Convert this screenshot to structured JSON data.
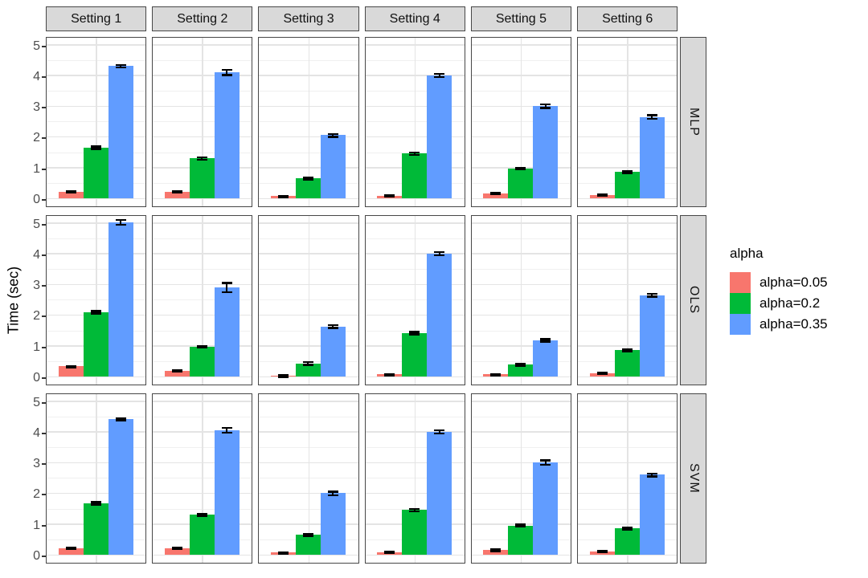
{
  "chart_data": {
    "type": "bar",
    "title": "",
    "xlabel": "",
    "ylabel": "Time (sec)",
    "ylim": [
      0,
      5.3
    ],
    "yticks": [
      0,
      1,
      2,
      3,
      4,
      5
    ],
    "grid": "on",
    "legend_position": "right",
    "legend_title": "alpha",
    "col_facets": [
      "Setting 1",
      "Setting 2",
      "Setting 3",
      "Setting 4",
      "Setting 5",
      "Setting 6"
    ],
    "row_facets": [
      "MLP",
      "OLS",
      "SVM"
    ],
    "series": [
      {
        "name": "alpha=0.05",
        "color": "#F8766D"
      },
      {
        "name": "alpha=0.2",
        "color": "#00BA38"
      },
      {
        "name": "alpha=0.35",
        "color": "#619CFF"
      }
    ],
    "panels": [
      {
        "row": "MLP",
        "col": "Setting 1",
        "values": [
          0.22,
          1.65,
          4.3
        ],
        "errors": [
          0.02,
          0.04,
          0.04
        ]
      },
      {
        "row": "MLP",
        "col": "Setting 2",
        "values": [
          0.21,
          1.3,
          4.1
        ],
        "errors": [
          0.02,
          0.04,
          0.08
        ]
      },
      {
        "row": "MLP",
        "col": "Setting 3",
        "values": [
          0.07,
          0.65,
          2.05
        ],
        "errors": [
          0.02,
          0.03,
          0.05
        ]
      },
      {
        "row": "MLP",
        "col": "Setting 4",
        "values": [
          0.08,
          1.45,
          4.0
        ],
        "errors": [
          0.02,
          0.04,
          0.05
        ]
      },
      {
        "row": "MLP",
        "col": "Setting 5",
        "values": [
          0.16,
          0.97,
          3.0
        ],
        "errors": [
          0.02,
          0.03,
          0.06
        ]
      },
      {
        "row": "MLP",
        "col": "Setting 6",
        "values": [
          0.1,
          0.85,
          2.65
        ],
        "errors": [
          0.02,
          0.03,
          0.06
        ]
      },
      {
        "row": "OLS",
        "col": "Setting 1",
        "values": [
          0.33,
          2.1,
          5.02
        ],
        "errors": [
          0.02,
          0.04,
          0.08
        ]
      },
      {
        "row": "OLS",
        "col": "Setting 2",
        "values": [
          0.18,
          0.97,
          2.9
        ],
        "errors": [
          0.02,
          0.03,
          0.15
        ]
      },
      {
        "row": "OLS",
        "col": "Setting 3",
        "values": [
          0.02,
          0.43,
          1.63
        ],
        "errors": [
          0.02,
          0.04,
          0.05
        ]
      },
      {
        "row": "OLS",
        "col": "Setting 4",
        "values": [
          0.07,
          1.42,
          4.0
        ],
        "errors": [
          0.02,
          0.04,
          0.05
        ]
      },
      {
        "row": "OLS",
        "col": "Setting 5",
        "values": [
          0.07,
          0.38,
          1.18
        ],
        "errors": [
          0.02,
          0.03,
          0.04
        ]
      },
      {
        "row": "OLS",
        "col": "Setting 6",
        "values": [
          0.1,
          0.85,
          2.65
        ],
        "errors": [
          0.02,
          0.03,
          0.05
        ]
      },
      {
        "row": "SVM",
        "col": "Setting 1",
        "values": [
          0.22,
          1.68,
          4.4
        ],
        "errors": [
          0.02,
          0.04,
          0.03
        ]
      },
      {
        "row": "SVM",
        "col": "Setting 2",
        "values": [
          0.22,
          1.3,
          4.05
        ],
        "errors": [
          0.02,
          0.03,
          0.08
        ]
      },
      {
        "row": "SVM",
        "col": "Setting 3",
        "values": [
          0.07,
          0.65,
          2.0
        ],
        "errors": [
          0.02,
          0.03,
          0.06
        ]
      },
      {
        "row": "SVM",
        "col": "Setting 4",
        "values": [
          0.08,
          1.45,
          4.0
        ],
        "errors": [
          0.02,
          0.04,
          0.05
        ]
      },
      {
        "row": "SVM",
        "col": "Setting 5",
        "values": [
          0.15,
          0.95,
          3.0
        ],
        "errors": [
          0.02,
          0.03,
          0.07
        ]
      },
      {
        "row": "SVM",
        "col": "Setting 6",
        "values": [
          0.1,
          0.85,
          2.6
        ],
        "errors": [
          0.02,
          0.03,
          0.05
        ]
      }
    ],
    "colors": {
      "strip_fill": "#D9D9D9",
      "panel_border": "#474747",
      "grid_major": "#E4E4E4",
      "grid_minor": "#F0F0F0",
      "tick_label": "#4D4D4D",
      "error_bar": "#000000"
    }
  }
}
